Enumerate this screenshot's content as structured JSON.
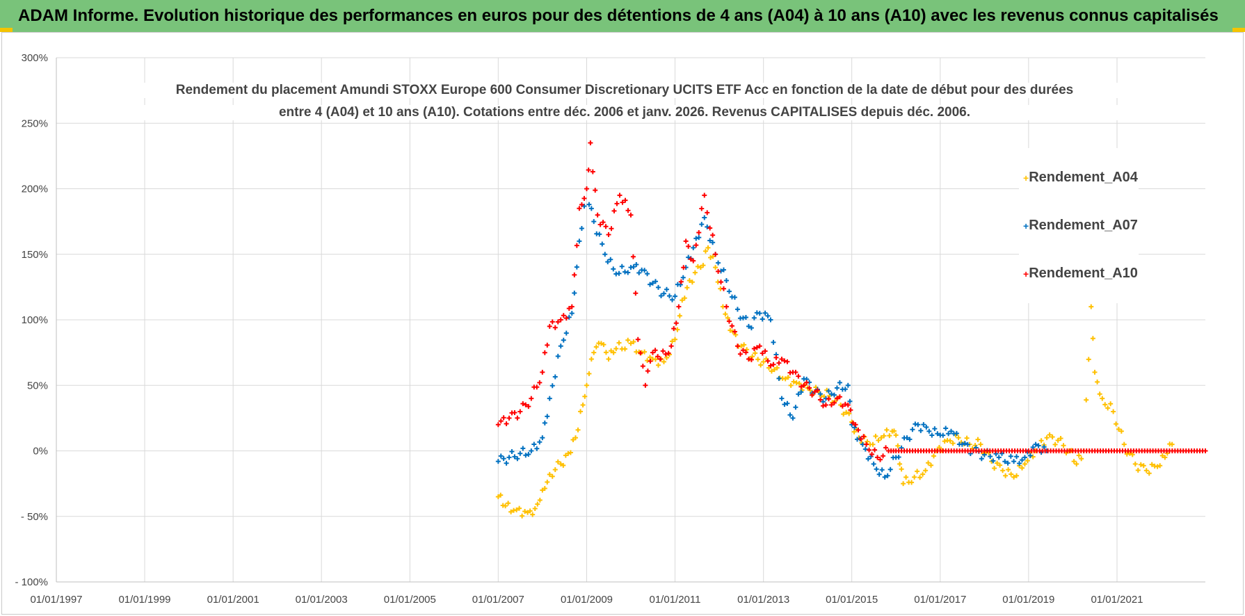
{
  "header": {
    "title": "ADAM Informe. Evolution historique des performances en euros pour des détentions de 4 ans (A04) à 10 ans (A10) avec les revenus connus capitalisés",
    "background_color": "#79c37a",
    "accent_color": "#f5c400"
  },
  "chart_data": {
    "type": "scatter",
    "title_line1": "Rendement du placement Amundi STOXX Europe 600 Consumer Discretionary UCITS ETF Acc en fonction de la date de début pour des durées",
    "title_line2": "entre 4 (A04) et 10 ans (A10). Cotations entre déc. 2006 et janv. 2026. Revenus CAPITALISES depuis déc. 2006.",
    "xlabel": "",
    "ylabel": "",
    "x_range": [
      "1997-01-01",
      "2023-01-01"
    ],
    "x_ticks": [
      "01/01/1997",
      "01/01/1999",
      "01/01/2001",
      "01/01/2003",
      "01/01/2005",
      "01/01/2007",
      "01/01/2009",
      "01/01/2011",
      "01/01/2013",
      "01/01/2015",
      "01/01/2017",
      "01/01/2019",
      "01/01/2021"
    ],
    "y_range": [
      -100,
      300
    ],
    "y_ticks": [
      "- 100%",
      "- 50%",
      "0%",
      "50%",
      "100%",
      "150%",
      "200%",
      "250%",
      "300%"
    ],
    "y_unit": "%",
    "grid": true,
    "legend_position": "right",
    "marker": "+",
    "series": [
      {
        "name": "Rendement_A04",
        "color": "#ffc000",
        "points": [
          [
            "2007-01-01",
            -35
          ],
          [
            "2007-03-01",
            -42
          ],
          [
            "2007-06-01",
            -45
          ],
          [
            "2007-09-01",
            -47
          ],
          [
            "2007-11-01",
            -44
          ],
          [
            "2008-01-01",
            -30
          ],
          [
            "2008-03-01",
            -18
          ],
          [
            "2008-06-01",
            -10
          ],
          [
            "2008-08-01",
            -2
          ],
          [
            "2008-10-01",
            10
          ],
          [
            "2008-12-01",
            35
          ],
          [
            "2009-01-01",
            50
          ],
          [
            "2009-03-01",
            75
          ],
          [
            "2009-05-01",
            82
          ],
          [
            "2009-07-01",
            70
          ],
          [
            "2009-09-01",
            78
          ],
          [
            "2010-01-01",
            82
          ],
          [
            "2010-04-01",
            75
          ],
          [
            "2010-07-01",
            70
          ],
          [
            "2010-10-01",
            68
          ],
          [
            "2011-01-01",
            85
          ],
          [
            "2011-03-01",
            115
          ],
          [
            "2011-05-01",
            130
          ],
          [
            "2011-08-01",
            140
          ],
          [
            "2011-10-01",
            155
          ],
          [
            "2011-12-01",
            140
          ],
          [
            "2012-02-01",
            110
          ],
          [
            "2012-04-01",
            92
          ],
          [
            "2012-07-01",
            80
          ],
          [
            "2012-10-01",
            72
          ],
          [
            "2013-01-01",
            68
          ],
          [
            "2013-04-01",
            62
          ],
          [
            "2013-07-01",
            55
          ],
          [
            "2013-10-01",
            52
          ],
          [
            "2014-01-01",
            48
          ],
          [
            "2014-04-01",
            45
          ],
          [
            "2014-07-01",
            42
          ],
          [
            "2014-10-01",
            35
          ],
          [
            "2015-01-01",
            22
          ],
          [
            "2015-03-01",
            10
          ],
          [
            "2015-06-01",
            5
          ],
          [
            "2015-09-01",
            10
          ],
          [
            "2015-12-01",
            15
          ],
          [
            "2016-01-01",
            12
          ],
          [
            "2016-02-01",
            -10
          ],
          [
            "2016-03-01",
            -25
          ],
          [
            "2016-06-01",
            -20
          ],
          [
            "2016-09-01",
            -15
          ],
          [
            "2016-12-01",
            0
          ],
          [
            "2017-03-01",
            8
          ],
          [
            "2017-06-01",
            10
          ],
          [
            "2017-09-01",
            5
          ],
          [
            "2017-12-01",
            5
          ],
          [
            "2018-03-01",
            -8
          ],
          [
            "2018-06-01",
            -15
          ],
          [
            "2018-09-01",
            -20
          ],
          [
            "2018-12-01",
            -10
          ],
          [
            "2019-03-01",
            0
          ],
          [
            "2019-06-01",
            10
          ],
          [
            "2019-09-01",
            8
          ],
          [
            "2019-12-01",
            0
          ],
          [
            "2020-02-01",
            -10
          ],
          [
            "2020-04-01",
            0
          ],
          [
            "2020-06-01",
            110
          ],
          [
            "2020-07-01",
            60
          ],
          [
            "2020-09-01",
            40
          ],
          [
            "2020-12-01",
            30
          ],
          [
            "2021-03-01",
            5
          ],
          [
            "2021-06-01",
            -10
          ],
          [
            "2021-09-01",
            -15
          ],
          [
            "2021-12-01",
            -12
          ],
          [
            "2022-02-01",
            -5
          ],
          [
            "2022-04-01",
            5
          ]
        ]
      },
      {
        "name": "Rendement_A07",
        "color": "#0070c0",
        "points": [
          [
            "2007-01-01",
            -8
          ],
          [
            "2007-04-01",
            -5
          ],
          [
            "2007-07-01",
            -2
          ],
          [
            "2007-10-01",
            0
          ],
          [
            "2008-01-01",
            10
          ],
          [
            "2008-03-01",
            40
          ],
          [
            "2008-06-01",
            80
          ],
          [
            "2008-09-01",
            105
          ],
          [
            "2008-11-01",
            160
          ],
          [
            "2009-01-01",
            200
          ],
          [
            "2009-03-01",
            175
          ],
          [
            "2009-06-01",
            150
          ],
          [
            "2009-09-01",
            135
          ],
          [
            "2010-01-01",
            140
          ],
          [
            "2010-04-01",
            138
          ],
          [
            "2010-07-01",
            128
          ],
          [
            "2010-10-01",
            120
          ],
          [
            "2011-01-01",
            118
          ],
          [
            "2011-04-01",
            140
          ],
          [
            "2011-06-01",
            155
          ],
          [
            "2011-09-01",
            178
          ],
          [
            "2011-12-01",
            150
          ],
          [
            "2012-03-01",
            130
          ],
          [
            "2012-06-01",
            108
          ],
          [
            "2012-09-01",
            95
          ],
          [
            "2012-12-01",
            105
          ],
          [
            "2013-03-01",
            100
          ],
          [
            "2013-06-01",
            40
          ],
          [
            "2013-09-01",
            25
          ],
          [
            "2013-12-01",
            55
          ],
          [
            "2014-03-01",
            45
          ],
          [
            "2014-06-01",
            40
          ],
          [
            "2014-09-01",
            48
          ],
          [
            "2014-12-01",
            50
          ],
          [
            "2015-01-01",
            20
          ],
          [
            "2015-04-01",
            5
          ],
          [
            "2015-07-01",
            -10
          ],
          [
            "2015-10-01",
            -20
          ],
          [
            "2016-01-01",
            -5
          ],
          [
            "2016-04-01",
            10
          ],
          [
            "2016-07-01",
            20
          ],
          [
            "2016-10-01",
            15
          ],
          [
            "2017-01-01",
            12
          ],
          [
            "2017-04-01",
            15
          ],
          [
            "2017-07-01",
            5
          ],
          [
            "2017-10-01",
            0
          ],
          [
            "2018-01-01",
            -3
          ],
          [
            "2018-05-01",
            -5
          ],
          [
            "2018-09-01",
            -8
          ],
          [
            "2018-12-01",
            -5
          ],
          [
            "2019-03-01",
            5
          ],
          [
            "2019-06-01",
            0
          ]
        ]
      },
      {
        "name": "Rendement_A10",
        "color": "#ff0000",
        "points": [
          [
            "2007-01-01",
            20
          ],
          [
            "2007-04-01",
            25
          ],
          [
            "2007-07-01",
            30
          ],
          [
            "2007-10-01",
            40
          ],
          [
            "2008-01-01",
            60
          ],
          [
            "2008-03-01",
            95
          ],
          [
            "2008-06-01",
            100
          ],
          [
            "2008-09-01",
            110
          ],
          [
            "2008-11-01",
            185
          ],
          [
            "2009-01-01",
            200
          ],
          [
            "2009-02-01",
            235
          ],
          [
            "2009-04-01",
            180
          ],
          [
            "2009-07-01",
            165
          ],
          [
            "2009-10-01",
            195
          ],
          [
            "2010-01-01",
            180
          ],
          [
            "2010-03-01",
            85
          ],
          [
            "2010-05-01",
            50
          ],
          [
            "2010-07-01",
            75
          ],
          [
            "2010-09-01",
            70
          ],
          [
            "2010-12-01",
            80
          ],
          [
            "2011-02-01",
            110
          ],
          [
            "2011-04-01",
            160
          ],
          [
            "2011-06-01",
            145
          ],
          [
            "2011-09-01",
            195
          ],
          [
            "2011-12-01",
            150
          ],
          [
            "2012-03-01",
            110
          ],
          [
            "2012-06-01",
            80
          ],
          [
            "2012-09-01",
            70
          ],
          [
            "2012-12-01",
            80
          ],
          [
            "2013-03-01",
            65
          ],
          [
            "2013-06-01",
            70
          ],
          [
            "2013-09-01",
            60
          ],
          [
            "2013-12-01",
            50
          ],
          [
            "2014-03-01",
            45
          ],
          [
            "2014-06-01",
            35
          ],
          [
            "2014-09-01",
            40
          ],
          [
            "2014-12-01",
            35
          ],
          [
            "2015-02-01",
            20
          ],
          [
            "2015-05-01",
            5
          ],
          [
            "2015-08-01",
            -5
          ],
          [
            "2015-11-01",
            0
          ],
          [
            "2016-01-01",
            0
          ],
          [
            "2017-01-01",
            0
          ],
          [
            "2018-01-01",
            0
          ],
          [
            "2019-01-01",
            0
          ],
          [
            "2020-01-01",
            0
          ],
          [
            "2021-01-01",
            0
          ],
          [
            "2022-01-01",
            0
          ],
          [
            "2023-01-01",
            0
          ]
        ]
      }
    ]
  }
}
